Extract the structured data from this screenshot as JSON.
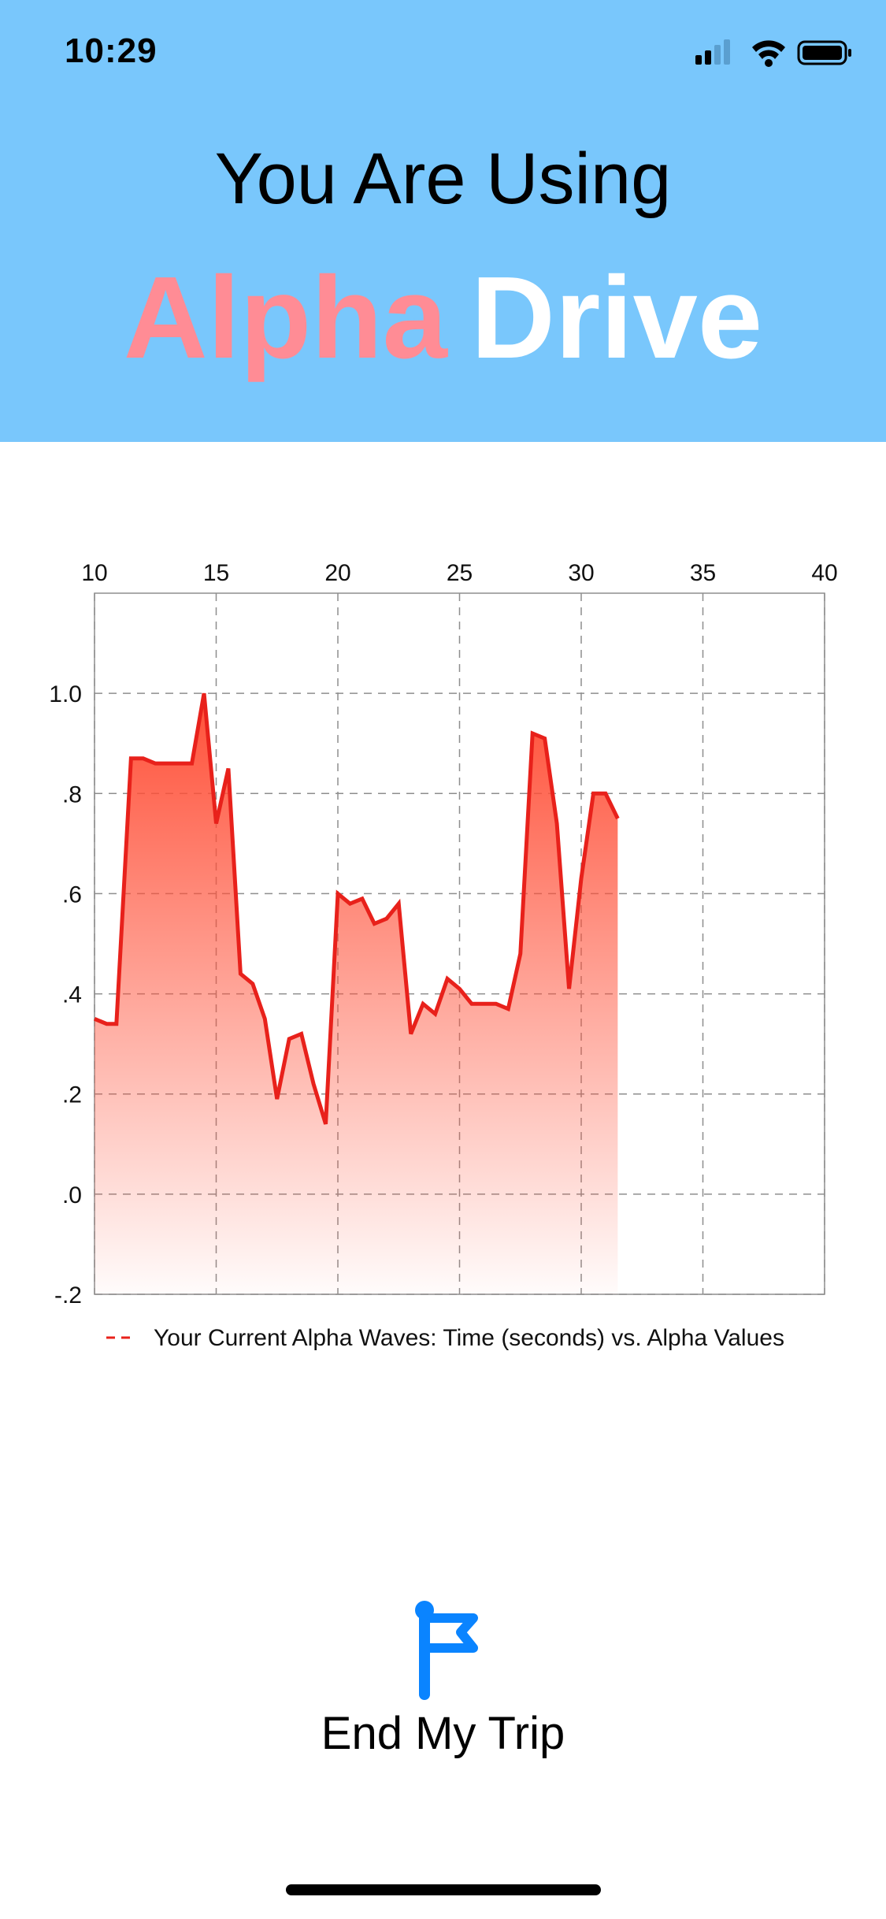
{
  "status_bar": {
    "time": "10:29",
    "icons": [
      "cellular-signal-icon",
      "wifi-icon",
      "battery-icon"
    ]
  },
  "header": {
    "title": "You Are Using",
    "brand_first": "Alpha",
    "brand_second": "Drive",
    "background": "#79c7fc",
    "brand_first_color": "#ff8c95",
    "brand_second_color": "#ffffff"
  },
  "chart_data": {
    "type": "area",
    "x_ticks": [
      "10",
      "15",
      "20",
      "25",
      "30",
      "35",
      "40"
    ],
    "y_ticks": [
      "1.0",
      ".8",
      ".6",
      ".4",
      ".2",
      ".0",
      "-.2"
    ],
    "xlim": [
      10,
      40
    ],
    "ylim": [
      -0.2,
      1.2
    ],
    "grid": "dashed",
    "legend_position": "bottom",
    "series": [
      {
        "name": "Your Current Alpha Waves: Time (seconds) vs. Alpha Values",
        "color": "#e8211b",
        "x": [
          10,
          10.5,
          10.9,
          11.5,
          12,
          12.5,
          13,
          13.5,
          14,
          14.5,
          15,
          15.5,
          16,
          16.5,
          17,
          17.5,
          18,
          18.5,
          19,
          19.5,
          20,
          20.5,
          21,
          21.5,
          22,
          22.5,
          23,
          23.5,
          24,
          24.5,
          25,
          25.5,
          26,
          26.5,
          27,
          27.5,
          28,
          28.5,
          29,
          29.5,
          30,
          30.5,
          31,
          31.5
        ],
        "y": [
          0.35,
          0.34,
          0.34,
          0.87,
          0.87,
          0.86,
          0.86,
          0.86,
          0.86,
          1.0,
          0.74,
          0.85,
          0.44,
          0.42,
          0.35,
          0.19,
          0.31,
          0.32,
          0.22,
          0.14,
          0.6,
          0.58,
          0.59,
          0.54,
          0.55,
          0.58,
          0.32,
          0.38,
          0.36,
          0.43,
          0.41,
          0.38,
          0.38,
          0.38,
          0.37,
          0.48,
          0.92,
          0.91,
          0.74,
          0.41,
          0.63,
          0.8,
          0.8,
          0.75
        ]
      }
    ]
  },
  "actions": {
    "end_trip_label": "End My Trip",
    "end_trip_icon": "flag-icon",
    "accent": "#0a84ff"
  }
}
